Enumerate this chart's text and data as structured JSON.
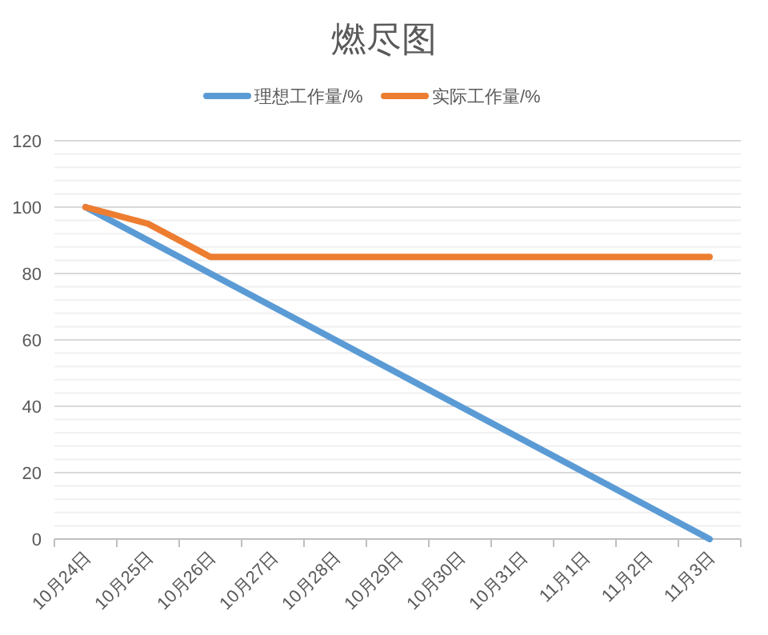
{
  "chart_data": {
    "type": "line",
    "title": "燃尽图",
    "categories": [
      "10月24日",
      "10月25日",
      "10月26日",
      "10月27日",
      "10月28日",
      "10月29日",
      "10月30日",
      "10月31日",
      "11月1日",
      "11月2日",
      "11月3日"
    ],
    "series": [
      {
        "name": "理想工作量/%",
        "color": "#5b9bd5",
        "values": [
          100,
          90,
          80,
          70,
          60,
          50,
          40,
          30,
          20,
          10,
          0
        ]
      },
      {
        "name": "实际工作量/%",
        "color": "#ed7d31",
        "values": [
          100,
          95,
          85,
          85,
          85,
          85,
          85,
          85,
          85,
          85,
          85
        ]
      }
    ],
    "ylim": [
      0,
      120
    ],
    "yticks": [
      0,
      {
        "value": 4,
        "label": null
      },
      {
        "value": 8,
        "label": null
      },
      {
        "value": 12,
        "label": null
      },
      {
        "value": 16,
        "label": null
      },
      20,
      {
        "value": 24,
        "label": null
      },
      {
        "value": 28,
        "label": null
      },
      {
        "value": 32,
        "label": null
      },
      {
        "value": 36,
        "label": null
      },
      40,
      {
        "value": 44,
        "label": null
      },
      {
        "value": 48,
        "label": null
      },
      {
        "value": 52,
        "label": null
      },
      {
        "value": 56,
        "label": null
      },
      60,
      {
        "value": 64,
        "label": null
      },
      {
        "value": 68,
        "label": null
      },
      {
        "value": 72,
        "label": null
      },
      {
        "value": 76,
        "label": null
      },
      80,
      {
        "value": 84,
        "label": null
      },
      {
        "value": 88,
        "label": null
      },
      {
        "value": 92,
        "label": null
      },
      {
        "value": 96,
        "label": null
      },
      100,
      {
        "value": 104,
        "label": null
      },
      {
        "value": 108,
        "label": null
      },
      {
        "value": 112,
        "label": null
      },
      {
        "value": 116,
        "label": null
      },
      120
    ],
    "grid": "y",
    "legend": "top",
    "marker": "none",
    "line_style": "solid"
  }
}
